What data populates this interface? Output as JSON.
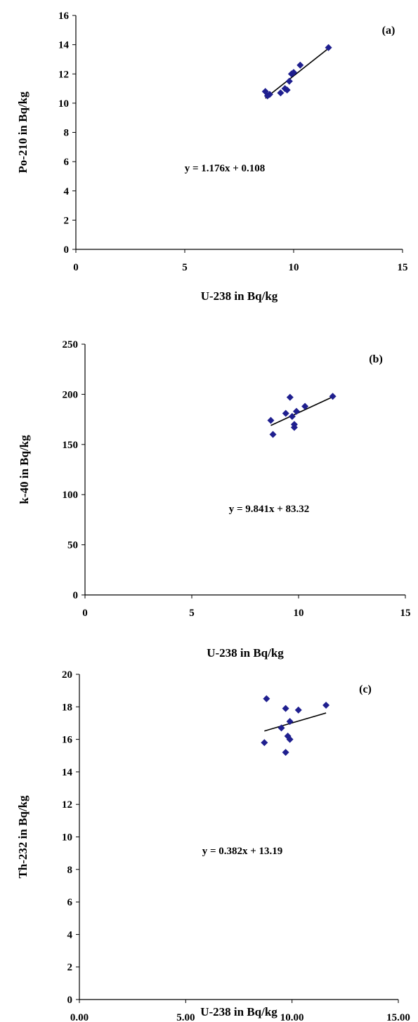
{
  "figure": {
    "background": "#ffffff",
    "marker_color": "#1f1f8f",
    "trendline_color": "#000000",
    "axis_color": "#000000"
  },
  "chart_data": [
    {
      "type": "scatter",
      "panel_label": "(a)",
      "xlabel": "U-238 in Bq/kg",
      "ylabel": "Po-210 in Bq/kg",
      "xlim": [
        0,
        15
      ],
      "ylim": [
        0,
        16
      ],
      "x_ticks": [
        "0",
        "5",
        "10",
        "15"
      ],
      "y_ticks": [
        "0",
        "2",
        "4",
        "6",
        "8",
        "10",
        "12",
        "14",
        "16"
      ],
      "grid": false,
      "legend": "none",
      "marker": "diamond",
      "x": [
        8.7,
        8.8,
        8.9,
        9.4,
        9.6,
        9.7,
        9.8,
        9.9,
        10.0,
        10.3,
        11.6
      ],
      "y": [
        10.8,
        10.5,
        10.6,
        10.7,
        11.0,
        10.9,
        11.5,
        12.0,
        12.1,
        12.6,
        13.8
      ],
      "trendline": {
        "slope": 1.176,
        "intercept": 0.108,
        "x_range": [
          8.7,
          11.6
        ]
      },
      "equation": "y = 1.176x + 0.108"
    },
    {
      "type": "scatter",
      "panel_label": "(b)",
      "xlabel": "U-238 in Bq/kg",
      "ylabel": "k-40 in Bq/kg",
      "xlim": [
        0,
        15
      ],
      "ylim": [
        0,
        250
      ],
      "x_ticks": [
        "0",
        "5",
        "10",
        "15"
      ],
      "y_ticks": [
        "0",
        "50",
        "100",
        "150",
        "200",
        "250"
      ],
      "grid": false,
      "legend": "none",
      "marker": "diamond",
      "x": [
        8.7,
        8.8,
        9.4,
        9.6,
        9.7,
        9.8,
        9.8,
        9.9,
        10.3,
        11.6
      ],
      "y": [
        174,
        160,
        181,
        197,
        178,
        167,
        170,
        183,
        188,
        198
      ],
      "trendline": {
        "slope": 9.841,
        "intercept": 83.32,
        "x_range": [
          8.7,
          11.6
        ]
      },
      "equation": "y = 9.841x + 83.32"
    },
    {
      "type": "scatter",
      "panel_label": "(c)",
      "xlabel": "U-238 in Bq/kg",
      "ylabel": "Th-232 in Bq/kg",
      "xlim": [
        0,
        15
      ],
      "ylim": [
        0,
        20
      ],
      "x_ticks": [
        "0.00",
        "5.00",
        "10.00",
        "15.00"
      ],
      "y_ticks": [
        "0",
        "2",
        "4",
        "6",
        "8",
        "10",
        "12",
        "14",
        "16",
        "18",
        "20"
      ],
      "grid": false,
      "legend": "none",
      "marker": "diamond",
      "x": [
        8.7,
        8.8,
        9.5,
        9.7,
        9.7,
        9.8,
        9.9,
        9.9,
        10.3,
        11.6
      ],
      "y": [
        15.8,
        18.5,
        16.7,
        17.9,
        15.2,
        16.2,
        16.0,
        17.1,
        17.8,
        18.1
      ],
      "trendline": {
        "slope": 0.382,
        "intercept": 13.19,
        "x_range": [
          8.7,
          11.6
        ]
      },
      "equation": "y = 0.382x + 13.19"
    }
  ]
}
